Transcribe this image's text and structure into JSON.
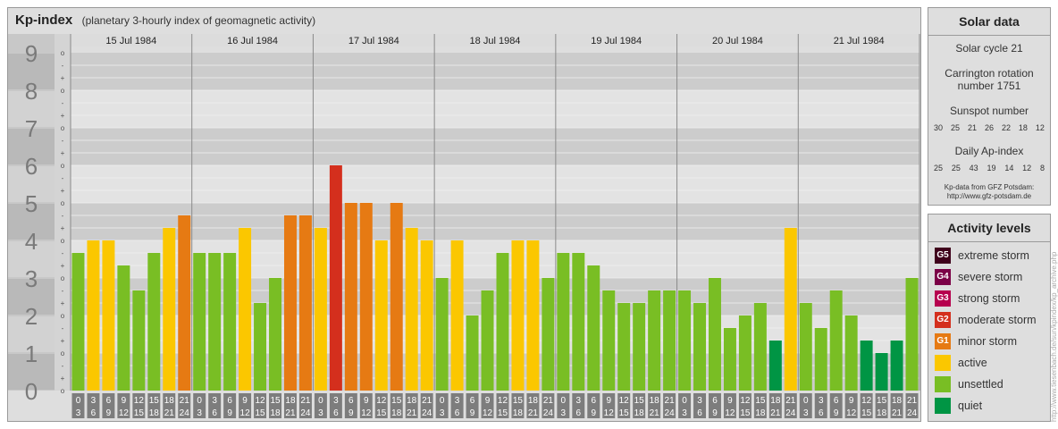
{
  "title": {
    "main": "Kp-index",
    "subtitle": "(planetary 3-hourly index of geomagnetic activity)"
  },
  "chart_data": {
    "type": "bar",
    "ylim": [
      0,
      9
    ],
    "y_tick_labels": [
      "0",
      "1",
      "2",
      "3",
      "4",
      "5",
      "6",
      "7",
      "8",
      "9"
    ],
    "minor_tick_labels": [
      "o",
      "+",
      "-",
      "o",
      "+",
      "-",
      "o",
      "+",
      "-",
      "o",
      "+",
      "-",
      "o",
      "+",
      "-",
      "o",
      "+",
      "-",
      "o",
      "+",
      "-",
      "o",
      "+",
      "-",
      "o",
      "+",
      "-",
      "o"
    ],
    "days": [
      "15 Jul 1984",
      "16 Jul 1984",
      "17 Jul 1984",
      "18 Jul 1984",
      "19 Jul 1984",
      "20 Jul 1984",
      "21 Jul 1984"
    ],
    "interval_start_labels": [
      "0",
      "3",
      "6",
      "9",
      "12",
      "15",
      "18",
      "21"
    ],
    "interval_end_labels": [
      "3",
      "6",
      "9",
      "12",
      "15",
      "18",
      "21",
      "24"
    ],
    "values": [
      [
        3.667,
        4.0,
        4.0,
        3.333,
        2.667,
        3.667,
        4.333,
        4.667
      ],
      [
        3.667,
        3.667,
        3.667,
        4.333,
        2.333,
        3.0,
        4.667,
        4.667
      ],
      [
        4.333,
        6.0,
        5.0,
        5.0,
        4.0,
        5.0,
        4.333,
        4.0
      ],
      [
        3.0,
        4.0,
        2.0,
        2.667,
        3.667,
        4.0,
        4.0,
        3.0
      ],
      [
        3.667,
        3.667,
        3.333,
        2.667,
        2.333,
        2.333,
        2.667,
        2.667
      ],
      [
        2.667,
        2.333,
        3.0,
        1.667,
        2.0,
        2.333,
        1.333,
        4.333
      ],
      [
        2.333,
        1.667,
        2.667,
        2.0,
        1.333,
        1.0,
        1.333,
        3.0
      ]
    ],
    "colors": {
      "quiet": "#009544",
      "unsettled": "#79be24",
      "active": "#fbc700",
      "G1": "#e67a13",
      "G2": "#d42f1d",
      "G3": "#b6004e",
      "G4": "#7b0046",
      "G5": "#3f001b"
    }
  },
  "solar": {
    "header": "Solar data",
    "cycle": "Solar cycle 21",
    "carrington_line1": "Carrington rotation",
    "carrington_line2": "number 1751",
    "sunspot_label": "Sunspot number",
    "sunspot_numbers": [
      "30",
      "25",
      "21",
      "26",
      "22",
      "18",
      "12"
    ],
    "ap_label": "Daily Ap-index",
    "ap_values": [
      "25",
      "25",
      "43",
      "19",
      "14",
      "12",
      "8"
    ],
    "source_line1": "Kp-data from GFZ Potsdam:",
    "source_line2": "http://www.gfz-potsdam.de"
  },
  "activity": {
    "header": "Activity levels",
    "items": [
      {
        "code": "G5",
        "label": "extreme storm",
        "color": "#3f001b"
      },
      {
        "code": "G4",
        "label": "severe storm",
        "color": "#7b0046"
      },
      {
        "code": "G3",
        "label": "strong storm",
        "color": "#b6004e"
      },
      {
        "code": "G2",
        "label": "moderate storm",
        "color": "#d42f1d"
      },
      {
        "code": "G1",
        "label": "minor storm",
        "color": "#e67a13"
      },
      {
        "code": "",
        "label": "active",
        "color": "#fbc700"
      },
      {
        "code": "",
        "label": "unsettled",
        "color": "#79be24"
      },
      {
        "code": "",
        "label": "quiet",
        "color": "#009544"
      }
    ]
  },
  "credit": "http://www.tiesenbach.de/sun/kpindex/kp_archive.php"
}
